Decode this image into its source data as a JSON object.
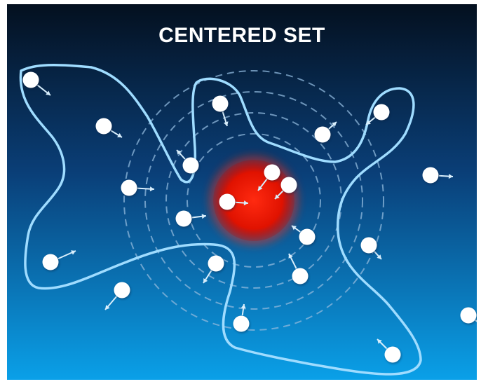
{
  "slide": {
    "title": "CENTERED SET"
  },
  "colors": {
    "background_top": "#04101f",
    "background_mid": "#0a3f78",
    "background_bottom": "#0aa0e8",
    "boundary_line": "#9fdcff",
    "dashed_rings": "#8fb8dc",
    "center_core": "#ff2a10",
    "center_edge": "#b80000",
    "dot_fill": "#ffffff",
    "arrow": "#d8eefc",
    "title_text": "#ffffff"
  },
  "icons": {
    "member_dot": "circle-with-arrow",
    "center": "glowing-red-circle"
  }
}
